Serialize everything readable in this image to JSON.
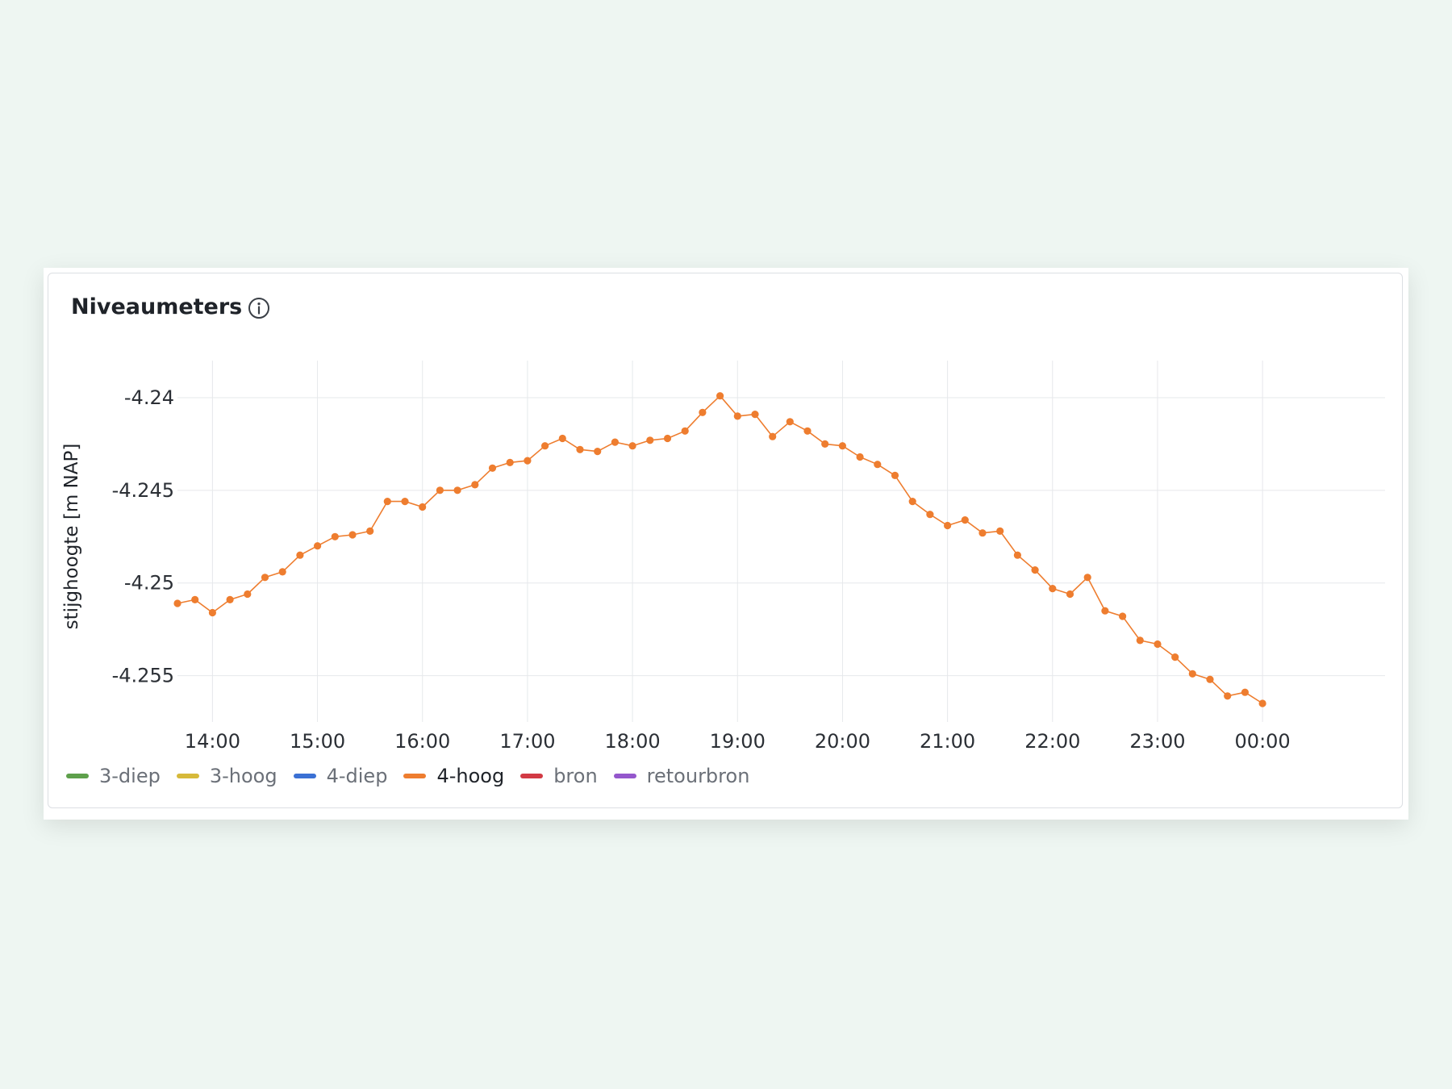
{
  "panel": {
    "title": "Niveaumeters",
    "info_icon": "info-icon"
  },
  "colors": {
    "background": "#eef6f2",
    "grid": "#e6e8eb",
    "line": "#ee7d2f"
  },
  "legend": [
    {
      "label": "3-diep",
      "color": "#5ea04b",
      "active": false
    },
    {
      "label": "3-hoog",
      "color": "#d6b93a",
      "active": false
    },
    {
      "label": "4-diep",
      "color": "#3b70d4",
      "active": false
    },
    {
      "label": "4-hoog",
      "color": "#ee7d2f",
      "active": true
    },
    {
      "label": "bron",
      "color": "#d23a44",
      "active": false
    },
    {
      "label": "retourbron",
      "color": "#9457cc",
      "active": false
    }
  ],
  "chart_data": {
    "type": "line",
    "title": "Niveaumeters",
    "ylabel": "stijghoogte [m NAP]",
    "xlabel": "",
    "ylim": [
      -4.2575,
      -4.238
    ],
    "y_ticks": [
      -4.24,
      -4.245,
      -4.25,
      -4.255
    ],
    "y_tick_labels": [
      "-4.24",
      "-4.245",
      "-4.25",
      "-4.255"
    ],
    "x_ticks": [
      "14:00",
      "15:00",
      "16:00",
      "17:00",
      "18:00",
      "19:00",
      "20:00",
      "21:00",
      "22:00",
      "23:00",
      "00:00"
    ],
    "x_range": [
      "13:40",
      "01:10"
    ],
    "grid": true,
    "legend_position": "bottom-left",
    "series": [
      {
        "name": "4-hoog",
        "x": [
          "13:40",
          "13:50",
          "14:00",
          "14:10",
          "14:20",
          "14:30",
          "14:40",
          "14:50",
          "15:00",
          "15:10",
          "15:20",
          "15:30",
          "15:40",
          "15:50",
          "16:00",
          "16:10",
          "16:20",
          "16:30",
          "16:40",
          "16:50",
          "17:00",
          "17:10",
          "17:20",
          "17:30",
          "17:40",
          "17:50",
          "18:00",
          "18:10",
          "18:20",
          "18:30",
          "18:40",
          "18:50",
          "19:00",
          "19:10",
          "19:20",
          "19:30",
          "19:40",
          "19:50",
          "20:00",
          "20:10",
          "20:20",
          "20:30",
          "20:40",
          "20:50",
          "21:00",
          "21:10",
          "21:20",
          "21:30",
          "21:40",
          "21:50",
          "22:00",
          "22:10",
          "22:20",
          "22:30",
          "22:40",
          "22:50",
          "23:00",
          "23:10",
          "23:20",
          "23:30",
          "23:40",
          "23:50",
          "00:00"
        ],
        "y": [
          -4.2511,
          -4.2509,
          -4.2516,
          -4.2509,
          -4.2506,
          -4.2497,
          -4.2494,
          -4.2485,
          -4.248,
          -4.2475,
          -4.2474,
          -4.2472,
          -4.2456,
          -4.2456,
          -4.2459,
          -4.245,
          -4.245,
          -4.2447,
          -4.2438,
          -4.2435,
          -4.2434,
          -4.2426,
          -4.2422,
          -4.2428,
          -4.2429,
          -4.2424,
          -4.2426,
          -4.2423,
          -4.2422,
          -4.2418,
          -4.2408,
          -4.2399,
          -4.241,
          -4.2409,
          -4.2421,
          -4.2413,
          -4.2418,
          -4.2425,
          -4.2426,
          -4.2432,
          -4.2436,
          -4.2442,
          -4.2456,
          -4.2463,
          -4.2469,
          -4.2466,
          -4.2473,
          -4.2472,
          -4.2485,
          -4.2493,
          -4.2503,
          -4.2506,
          -4.2497,
          -4.2515,
          -4.2518,
          -4.2531,
          -4.2533,
          -4.254,
          -4.2549,
          -4.2552,
          -4.2561,
          -4.2559,
          -4.2565
        ]
      }
    ]
  }
}
